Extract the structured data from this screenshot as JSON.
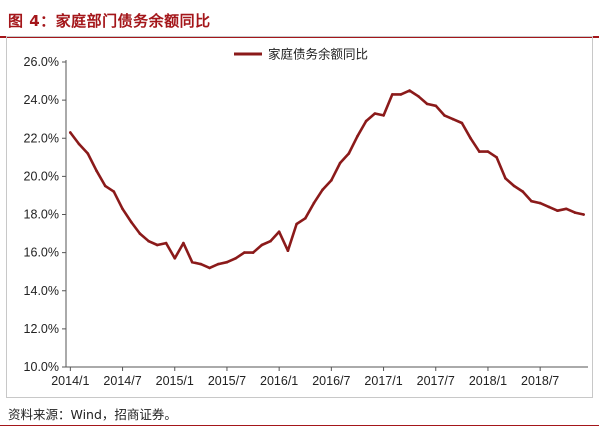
{
  "header": {
    "title": "图 4：家庭部门债务余额同比"
  },
  "source": "资料来源：Wind，招商证券。",
  "colors": {
    "accent": "#a4161a",
    "series": "#8b1a1a"
  },
  "chart_data": {
    "type": "line",
    "title": "",
    "xlabel": "",
    "ylabel": "",
    "legend": "top-center",
    "grid": false,
    "ylim": [
      10.0,
      26.0
    ],
    "yticks": [
      "10.0%",
      "12.0%",
      "14.0%",
      "16.0%",
      "18.0%",
      "20.0%",
      "22.0%",
      "24.0%",
      "26.0%"
    ],
    "xticks": [
      "2014/1",
      "2014/7",
      "2015/1",
      "2015/7",
      "2016/1",
      "2016/7",
      "2017/1",
      "2017/7",
      "2018/1",
      "2018/7"
    ],
    "x": [
      "2014/1",
      "2014/2",
      "2014/3",
      "2014/4",
      "2014/5",
      "2014/6",
      "2014/7",
      "2014/8",
      "2014/9",
      "2014/10",
      "2014/11",
      "2014/12",
      "2015/1",
      "2015/2",
      "2015/3",
      "2015/4",
      "2015/5",
      "2015/6",
      "2015/7",
      "2015/8",
      "2015/9",
      "2015/10",
      "2015/11",
      "2015/12",
      "2016/1",
      "2016/2",
      "2016/3",
      "2016/4",
      "2016/5",
      "2016/6",
      "2016/7",
      "2016/8",
      "2016/9",
      "2016/10",
      "2016/11",
      "2016/12",
      "2017/1",
      "2017/2",
      "2017/3",
      "2017/4",
      "2017/5",
      "2017/6",
      "2017/7",
      "2017/8",
      "2017/9",
      "2017/10",
      "2017/11",
      "2017/12",
      "2018/1",
      "2018/2",
      "2018/3",
      "2018/4",
      "2018/5",
      "2018/6",
      "2018/7",
      "2018/8",
      "2018/9",
      "2018/10",
      "2018/11",
      "2018/12"
    ],
    "series": [
      {
        "name": "家庭债务余额同比",
        "values": [
          22.3,
          21.7,
          21.2,
          20.3,
          19.5,
          19.2,
          18.3,
          17.6,
          17.0,
          16.6,
          16.4,
          16.5,
          15.7,
          16.5,
          15.5,
          15.4,
          15.2,
          15.4,
          15.5,
          15.7,
          16.0,
          16.0,
          16.4,
          16.6,
          17.1,
          16.1,
          17.5,
          17.8,
          18.6,
          19.3,
          19.8,
          20.7,
          21.2,
          22.1,
          22.9,
          23.3,
          23.2,
          24.3,
          24.3,
          24.5,
          24.2,
          23.8,
          23.7,
          23.2,
          23.0,
          22.8,
          22.0,
          21.3,
          21.3,
          21.0,
          19.9,
          19.5,
          19.2,
          18.7,
          18.6,
          18.4,
          18.2,
          18.3,
          18.1,
          18.0
        ]
      }
    ]
  }
}
